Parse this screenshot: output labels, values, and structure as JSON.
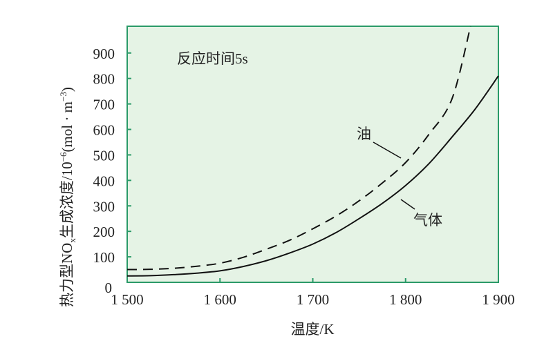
{
  "chart_data": {
    "type": "line",
    "title": "",
    "annotation": "反应时间5s",
    "xlabel": "温度/K",
    "ylabel_parts": {
      "pre": "热力型NO",
      "sub": "x",
      "post": "生成浓度/10",
      "exp": "−6",
      "unit": "(mol · m",
      "unit_exp": "−3",
      "close": ")"
    },
    "xlim": [
      1500,
      1900
    ],
    "ylim": [
      0,
      1005
    ],
    "x_ticks": [
      1500,
      1600,
      1700,
      1800,
      1900
    ],
    "x_tick_labels": [
      "1 500",
      "1 600",
      "1 700",
      "1 800",
      "1 900"
    ],
    "y_ticks": [
      0,
      100,
      200,
      300,
      400,
      500,
      600,
      700,
      800,
      900
    ],
    "y_tick_labels": [
      "0",
      "100",
      "200",
      "300",
      "400",
      "500",
      "600",
      "700",
      "800",
      "900"
    ],
    "grid": false,
    "series": [
      {
        "name": "油",
        "style": "dashed",
        "x": [
          1500,
          1525,
          1550,
          1575,
          1600,
          1625,
          1650,
          1675,
          1700,
          1725,
          1750,
          1775,
          1800,
          1825,
          1850,
          1870
        ],
        "values": [
          50,
          51,
          55,
          63,
          75,
          98,
          130,
          165,
          210,
          260,
          320,
          390,
          470,
          580,
          720,
          1005
        ]
      },
      {
        "name": "气体",
        "style": "solid",
        "x": [
          1500,
          1525,
          1550,
          1575,
          1600,
          1625,
          1650,
          1675,
          1700,
          1725,
          1750,
          1775,
          1800,
          1825,
          1850,
          1875,
          1900
        ],
        "values": [
          25,
          26,
          30,
          36,
          45,
          62,
          85,
          115,
          150,
          195,
          250,
          310,
          380,
          465,
          570,
          680,
          810
        ]
      }
    ],
    "colors": {
      "plot_background": "#e5f3e5",
      "frame": "#2a9a68",
      "line": "#111111"
    }
  }
}
